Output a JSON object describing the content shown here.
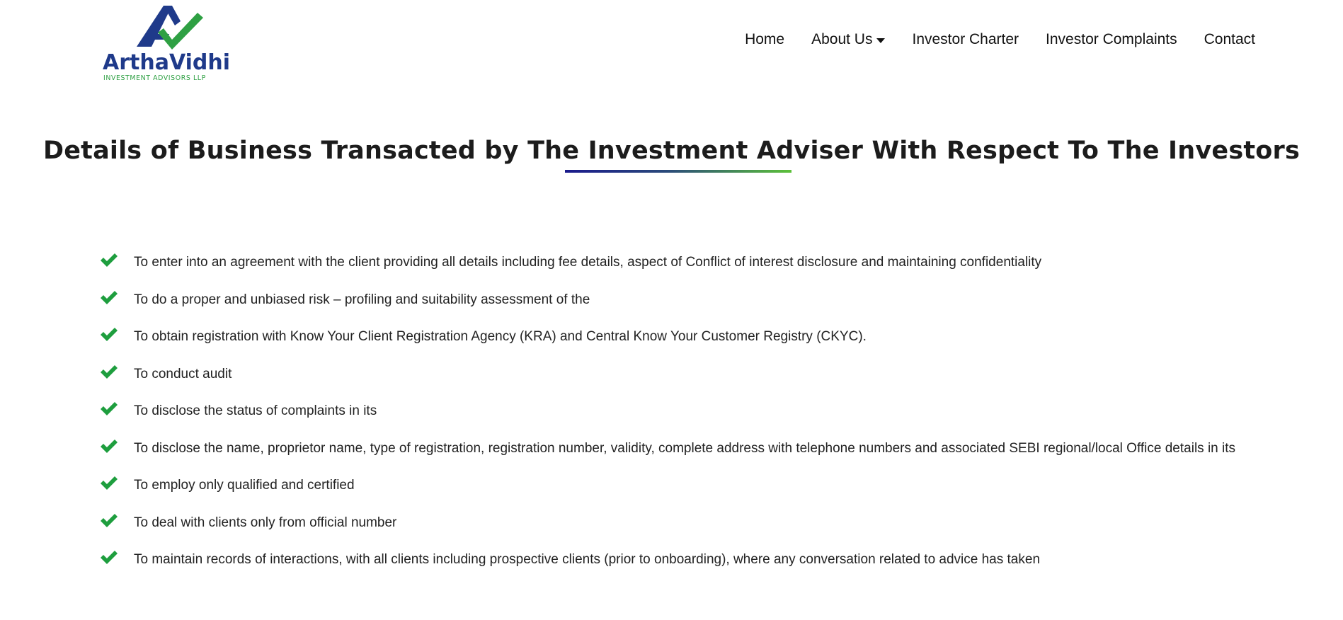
{
  "header": {
    "logo": {
      "name": "ArthaVidhi",
      "tagline": "INVESTMENT ADVISORS LLP",
      "colors": {
        "navy": "#1f3a8a",
        "green": "#2ea043"
      }
    },
    "nav": [
      {
        "label": "Home"
      },
      {
        "label": "About Us",
        "has_dropdown": true
      },
      {
        "label": "Investor Charter"
      },
      {
        "label": "Investor Complaints"
      },
      {
        "label": "Contact"
      }
    ]
  },
  "main": {
    "title": "Details of Business Transacted by The Investment Adviser With Respect To The Investors",
    "rule_colors": [
      "#1a1a8c",
      "#5cc13a"
    ],
    "check_icon": "checkmark-icon",
    "check_color": "#1e9e3e",
    "items": [
      "To enter into an agreement with the client providing all details including fee details, aspect of Conflict of interest disclosure and maintaining confidentiality",
      "To do a proper and unbiased risk – profiling and suitability assessment of the",
      "To obtain registration with Know Your Client Registration Agency (KRA) and Central Know Your Customer Registry (CKYC).",
      "To conduct audit",
      "To disclose the status of complaints in its",
      "To disclose the name, proprietor name, type of registration, registration number, validity, complete address with telephone numbers and associated SEBI regional/local Office details in its",
      "To employ only qualified and certified",
      "To deal with clients only from official number",
      "To maintain records of interactions, with all clients including prospective clients (prior to onboarding), where any conversation related to advice has taken"
    ]
  }
}
